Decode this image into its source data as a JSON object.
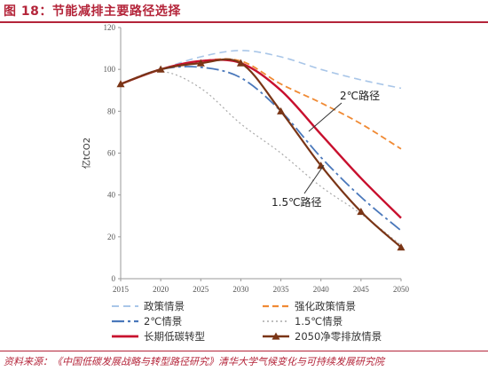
{
  "figure_label": "图 18：节能减排主要路径选择",
  "source_note": "资料来源：《中国低碳发展战略与转型路径研究》清华大学气候变化与可持续发展研究院",
  "chart_data": {
    "type": "line",
    "title": "",
    "xlabel": "",
    "ylabel": "亿tCO2",
    "xlim": [
      2015,
      2050
    ],
    "ylim": [
      0,
      120
    ],
    "x_ticks": [
      2015,
      2020,
      2025,
      2030,
      2035,
      2040,
      2045,
      2050
    ],
    "y_ticks": [
      0,
      20,
      40,
      60,
      80,
      100,
      120
    ],
    "grid": false,
    "legend_position": "bottom",
    "series": [
      {
        "name": "政策情景",
        "color": "#a9c6e8",
        "dash": "8,5",
        "marker": "none",
        "x": [
          2015,
          2020,
          2025,
          2030,
          2035,
          2040,
          2045,
          2050
        ],
        "y": [
          93,
          100,
          106,
          109,
          106,
          100,
          95,
          91
        ]
      },
      {
        "name": "强化政策情景",
        "color": "#f08a34",
        "dash": "7,4",
        "marker": "none",
        "x": [
          2015,
          2020,
          2025,
          2030,
          2035,
          2040,
          2045,
          2050
        ],
        "y": [
          93,
          100,
          104,
          104,
          93,
          84,
          74,
          62
        ]
      },
      {
        "name": "2℃情景",
        "color": "#4a78bb",
        "dash": "14,4,3,4",
        "marker": "none",
        "x": [
          2015,
          2020,
          2025,
          2030,
          2035,
          2040,
          2045,
          2050
        ],
        "y": [
          93,
          100,
          101,
          96,
          80,
          58,
          39,
          23
        ]
      },
      {
        "name": "1.5℃情景",
        "color": "#a9a9a9",
        "dash": "2,3",
        "marker": "none",
        "x": [
          2015,
          2020,
          2025,
          2030,
          2035,
          2040,
          2045,
          2050
        ],
        "y": [
          93,
          99,
          91,
          74,
          60,
          44,
          31,
          16
        ]
      },
      {
        "name": "长期低碳转型",
        "color": "#c8102e",
        "dash": "",
        "marker": "none",
        "x": [
          2015,
          2020,
          2025,
          2030,
          2035,
          2040,
          2045,
          2050
        ],
        "y": [
          93,
          100,
          104,
          103,
          90,
          69,
          48,
          29
        ]
      },
      {
        "name": "2050净零排放情景",
        "color": "#7a3516",
        "dash": "",
        "marker": "triangle",
        "x": [
          2015,
          2020,
          2025,
          2030,
          2035,
          2040,
          2045,
          2050
        ],
        "y": [
          93,
          100,
          103,
          103,
          80,
          54,
          32,
          15
        ]
      }
    ],
    "annotations": [
      {
        "text": "2℃路径",
        "points_to_series": "2℃情景"
      },
      {
        "text": "1.5℃路径",
        "points_to_series": "2050净零排放情景"
      }
    ]
  }
}
